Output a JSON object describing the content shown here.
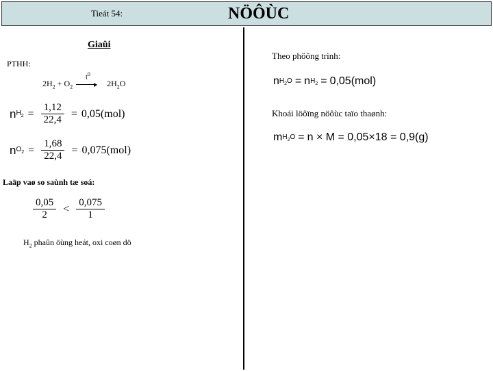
{
  "header": {
    "lesson": "Tieát 54:",
    "title": "NÖÔÙC"
  },
  "left": {
    "heading": "Giaûi",
    "pthh": "PTHH:",
    "equation": {
      "lhs_coef1": "2",
      "lhs_h": "H",
      "lhs_h_sub": "2",
      "plus": " + ",
      "lhs_o": "O",
      "lhs_o_sub": "2",
      "t0": "t",
      "t0_sup": "0",
      "rhs_coef": "2",
      "rhs_h": "H",
      "rhs_h_sub": "2",
      "rhs_o": "O"
    },
    "formula1": {
      "n": "n",
      "sub": "H",
      "sub2": "2",
      "num": "1,12",
      "den": "22,4",
      "result": "0,05(mol)"
    },
    "formula2": {
      "n": "n",
      "sub": "O",
      "sub2": "2",
      "num": "1,68",
      "den": "22,4",
      "result": "0,075(mol)"
    },
    "ratio_label": "Laäp vaø so saùnh tæ soá:",
    "ratio": {
      "num1": "0,05",
      "den1": "2",
      "lt": "<",
      "num2": "0,075",
      "den2": "1"
    },
    "final_prefix": "H",
    "final_sub": "2",
    "final_text": " phaûn öùng heát, oxi coøn dö"
  },
  "right": {
    "label1": "Theo phöông trình:",
    "formula1": {
      "n1": "n",
      "sub1a": "H",
      "sub1b": "2",
      "sub1c": "O",
      "eq": "=",
      "n2": "n",
      "sub2a": "H",
      "sub2b": "2",
      "eq2": "=",
      "result": "0,05(mol)"
    },
    "label2": "Khoái löôïng nöôùc taïo thaønh:",
    "formula2": {
      "m": "m",
      "sub_a": "H",
      "sub_b": "2",
      "sub_c": "O",
      "eq": "=",
      "rhs": "n × M = 0,05×18 = 0,9(g)"
    }
  }
}
